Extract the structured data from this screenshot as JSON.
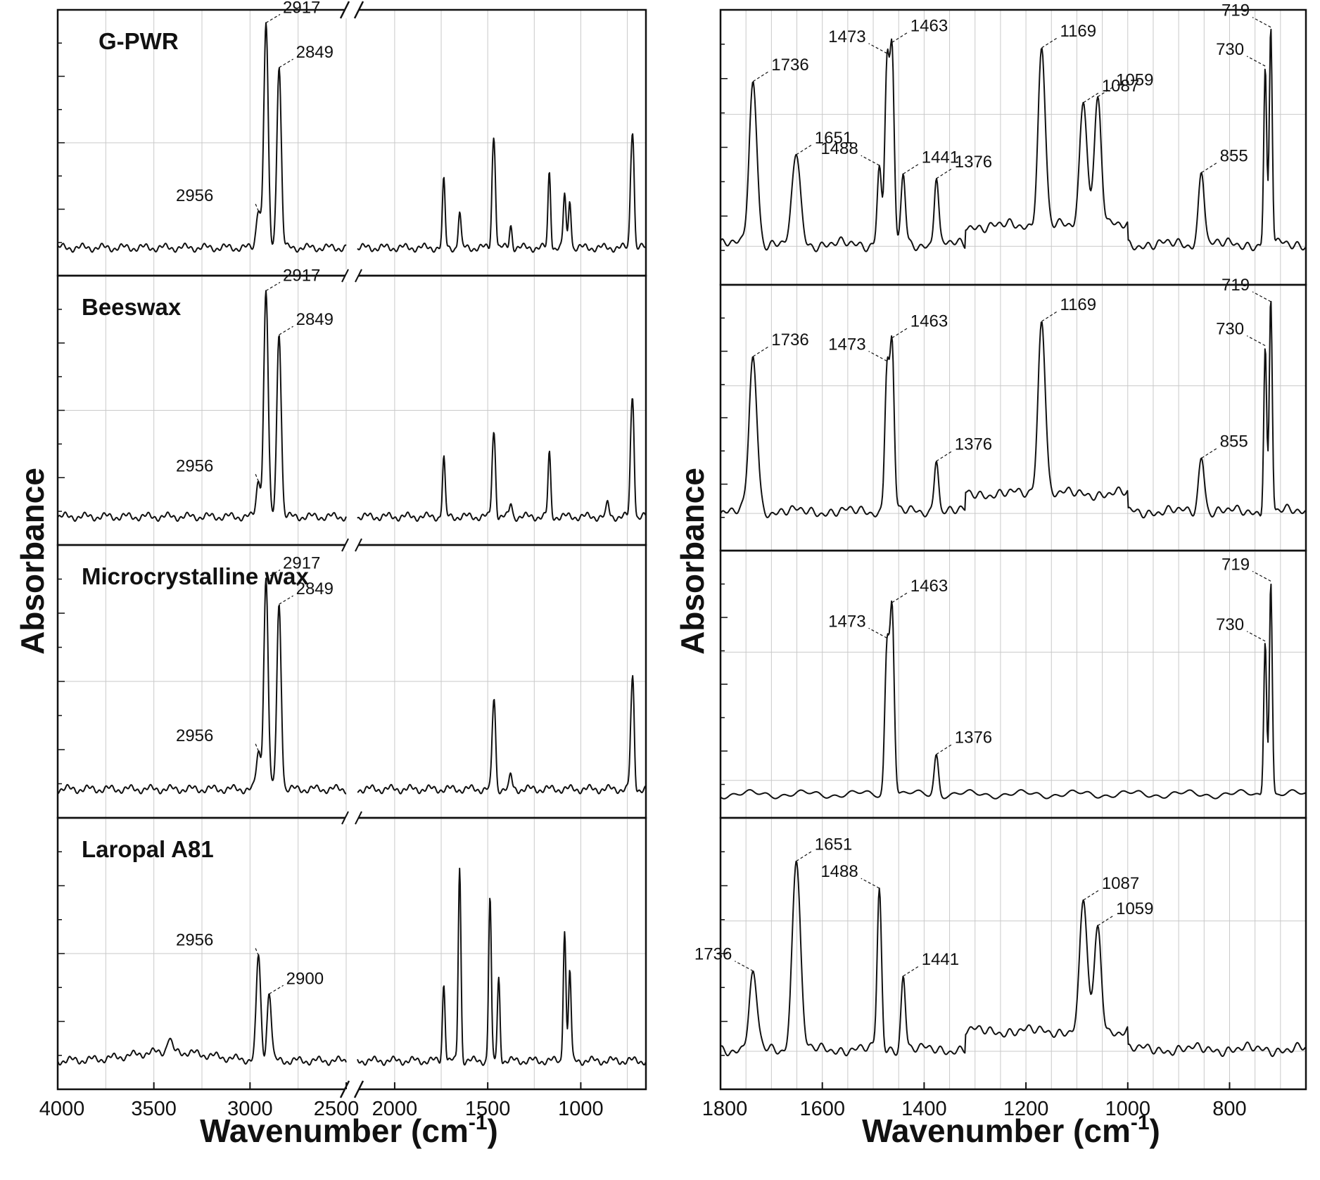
{
  "chart_data": [
    {
      "type": "line",
      "xlabel": "Wavenumber (cm",
      "xlabel_sup": "-1",
      "ylabel": "Absorbance",
      "x_axis_break": [
        2500,
        2200
      ],
      "xlim": [
        4000,
        650
      ],
      "x_ticks": [
        4000,
        3500,
        3000,
        2500,
        2000,
        1500,
        1000
      ],
      "reversed_x": true,
      "grid": "vertical",
      "panels": [
        {
          "name": "G-PWR",
          "peaks": [
            {
              "x": 2917,
              "y": 1.0,
              "label": "2917"
            },
            {
              "x": 2849,
              "y": 0.82,
              "label": "2849"
            },
            {
              "x": 2956,
              "y": 0.18,
              "label": "2956"
            }
          ],
          "bands": [
            {
              "x": 1736,
              "y": 0.3
            },
            {
              "x": 1651,
              "y": 0.16
            },
            {
              "x": 1473,
              "y": 0.3
            },
            {
              "x": 1463,
              "y": 0.34
            },
            {
              "x": 1376,
              "y": 0.1
            },
            {
              "x": 1169,
              "y": 0.34
            },
            {
              "x": 1087,
              "y": 0.24
            },
            {
              "x": 1059,
              "y": 0.22
            },
            {
              "x": 730,
              "y": 0.28
            },
            {
              "x": 719,
              "y": 0.42
            }
          ]
        },
        {
          "name": "Beeswax",
          "peaks": [
            {
              "x": 2917,
              "y": 1.0,
              "label": "2917"
            },
            {
              "x": 2849,
              "y": 0.82,
              "label": "2849"
            },
            {
              "x": 2956,
              "y": 0.16,
              "label": "2956"
            }
          ],
          "bands": [
            {
              "x": 1736,
              "y": 0.26
            },
            {
              "x": 1473,
              "y": 0.22
            },
            {
              "x": 1463,
              "y": 0.26
            },
            {
              "x": 1376,
              "y": 0.06
            },
            {
              "x": 1169,
              "y": 0.28
            },
            {
              "x": 855,
              "y": 0.06
            },
            {
              "x": 730,
              "y": 0.28
            },
            {
              "x": 719,
              "y": 0.42
            }
          ]
        },
        {
          "name": "Microcrystalline wax",
          "peaks": [
            {
              "x": 2917,
              "y": 0.92,
              "label": "2917"
            },
            {
              "x": 2849,
              "y": 0.8,
              "label": "2849"
            },
            {
              "x": 2956,
              "y": 0.16,
              "label": "2956"
            }
          ],
          "bands": [
            {
              "x": 1473,
              "y": 0.2
            },
            {
              "x": 1463,
              "y": 0.3
            },
            {
              "x": 1376,
              "y": 0.06
            },
            {
              "x": 730,
              "y": 0.22
            },
            {
              "x": 719,
              "y": 0.4
            }
          ]
        },
        {
          "name": "Laropal A81",
          "peaks": [
            {
              "x": 2956,
              "y": 0.46,
              "label": "2956"
            },
            {
              "x": 2900,
              "y": 0.3,
              "label": "2900"
            }
          ],
          "bands": [
            {
              "x": 3420,
              "y": 0.06
            },
            {
              "x": 1736,
              "y": 0.34
            },
            {
              "x": 1651,
              "y": 0.85
            },
            {
              "x": 1488,
              "y": 0.72
            },
            {
              "x": 1441,
              "y": 0.36
            },
            {
              "x": 1087,
              "y": 0.58
            },
            {
              "x": 1059,
              "y": 0.4
            }
          ]
        }
      ]
    },
    {
      "type": "line",
      "xlabel": "Wavenumber (cm",
      "xlabel_sup": "-1",
      "ylabel": "Absorbance",
      "xlim": [
        1800,
        650
      ],
      "x_ticks": [
        1800,
        1600,
        1400,
        1200,
        1000,
        800
      ],
      "reversed_x": true,
      "grid": "vertical",
      "panels": [
        {
          "name": "G-PWR",
          "peaks": [
            {
              "x": 1736,
              "y": 0.7,
              "label": "1736"
            },
            {
              "x": 1651,
              "y": 0.4,
              "label": "1651"
            },
            {
              "x": 1488,
              "y": 0.34,
              "label": "1488"
            },
            {
              "x": 1473,
              "y": 0.78,
              "label": "1473"
            },
            {
              "x": 1463,
              "y": 0.8,
              "label": "1463"
            },
            {
              "x": 1441,
              "y": 0.3,
              "label": "1441"
            },
            {
              "x": 1376,
              "y": 0.3,
              "label": "1376"
            },
            {
              "x": 1169,
              "y": 0.77,
              "label": "1169"
            },
            {
              "x": 1087,
              "y": 0.56,
              "label": "1087"
            },
            {
              "x": 1059,
              "y": 0.55,
              "label": "1059"
            },
            {
              "x": 855,
              "y": 0.33,
              "label": "855"
            },
            {
              "x": 730,
              "y": 0.76,
              "label": "730"
            },
            {
              "x": 719,
              "y": 0.95,
              "label": "719"
            }
          ]
        },
        {
          "name": "Beeswax",
          "peaks": [
            {
              "x": 1736,
              "y": 0.69,
              "label": "1736"
            },
            {
              "x": 1473,
              "y": 0.65,
              "label": "1473"
            },
            {
              "x": 1463,
              "y": 0.73,
              "label": "1463"
            },
            {
              "x": 1376,
              "y": 0.25,
              "label": "1376"
            },
            {
              "x": 1169,
              "y": 0.79,
              "label": "1169"
            },
            {
              "x": 855,
              "y": 0.25,
              "label": "855"
            },
            {
              "x": 730,
              "y": 0.75,
              "label": "730"
            },
            {
              "x": 719,
              "y": 0.97,
              "label": "719"
            }
          ]
        },
        {
          "name": "Microcrystalline wax",
          "peaks": [
            {
              "x": 1463,
              "y": 0.83,
              "label": "1463"
            },
            {
              "x": 1473,
              "y": 0.65,
              "label": "1473"
            },
            {
              "x": 1376,
              "y": 0.18,
              "label": "1376"
            },
            {
              "x": 730,
              "y": 0.7,
              "label": "730"
            },
            {
              "x": 719,
              "y": 0.96,
              "label": "719"
            }
          ]
        },
        {
          "name": "Laropal A81",
          "peaks": [
            {
              "x": 1736,
              "y": 0.32,
              "label": "1736"
            },
            {
              "x": 1651,
              "y": 0.85,
              "label": "1651"
            },
            {
              "x": 1488,
              "y": 0.7,
              "label": "1488"
            },
            {
              "x": 1441,
              "y": 0.33,
              "label": "1441"
            },
            {
              "x": 1087,
              "y": 0.58,
              "label": "1087"
            },
            {
              "x": 1059,
              "y": 0.45,
              "label": "1059"
            }
          ]
        }
      ]
    }
  ]
}
